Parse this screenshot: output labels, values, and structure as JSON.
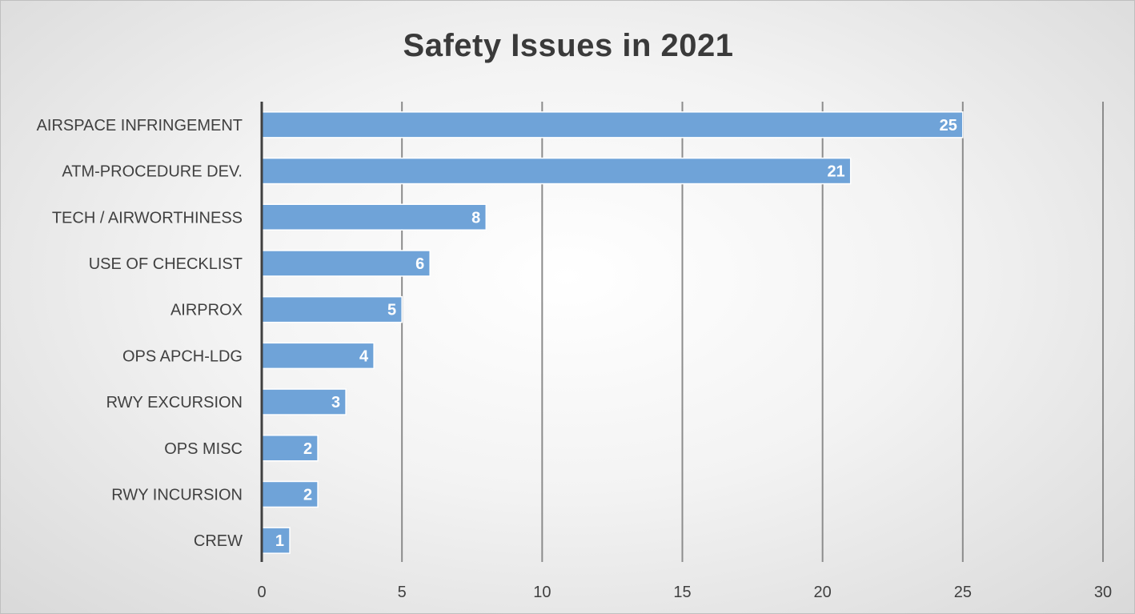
{
  "chart_data": {
    "type": "bar",
    "orientation": "horizontal",
    "title": "Safety Issues in 2021",
    "xlabel": "",
    "ylabel": "",
    "categories": [
      "AIRSPACE INFRINGEMENT",
      "ATM-PROCEDURE DEV.",
      "TECH / AIRWORTHINESS",
      "USE OF CHECKLIST",
      "AIRPROX",
      "OPS APCH-LDG",
      "RWY EXCURSION",
      "OPS MISC",
      "RWY INCURSION",
      "CREW"
    ],
    "values": [
      25,
      21,
      8,
      6,
      5,
      4,
      3,
      2,
      2,
      1
    ],
    "xlim": [
      0,
      30
    ],
    "xticks": [
      "0",
      "5",
      "10",
      "15",
      "20",
      "25",
      "30"
    ],
    "grid": "vertical",
    "legend": "none",
    "data_labels": "inside-end",
    "colors": {
      "bar": "#6fa3d8",
      "bar_edge": "#ffffff",
      "data_label": "#ffffff",
      "grid": "#8c8c8c",
      "axis": "#404040",
      "text": "#404040",
      "title": "#3a3a3a"
    }
  }
}
